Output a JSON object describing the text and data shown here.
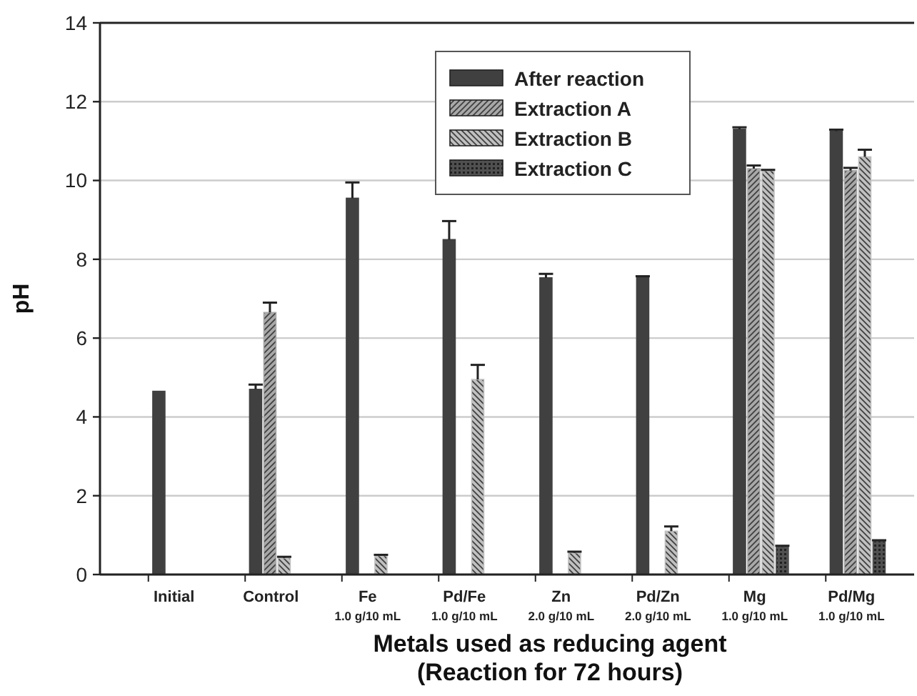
{
  "chart_data": {
    "type": "bar",
    "xlabel": "Metals used as reducing agent\n(Reaction for 72 hours)",
    "ylabel": "pH",
    "categories": [
      "Initial",
      "Control",
      "Fe\n1.0 g/10 mL",
      "Pd/Fe\n1.0 g/10 mL",
      "Zn\n2.0 g/10 mL",
      "Pd/Zn\n2.0 g/10 mL",
      "Mg\n1.0 g/10 mL",
      "Pd/Mg\n1.0 g/10 mL"
    ],
    "series": [
      {
        "name": "After reaction",
        "color": "#404040",
        "values": [
          4.65,
          4.7,
          9.55,
          8.5,
          7.53,
          7.55,
          11.3,
          11.25
        ],
        "errors": [
          null,
          [
            4.7,
            4.82
          ],
          [
            9.55,
            9.95
          ],
          [
            8.5,
            8.97
          ],
          [
            7.53,
            7.63
          ],
          [
            7.55,
            7.57
          ],
          [
            11.3,
            11.35
          ],
          [
            11.25,
            11.29
          ]
        ]
      },
      {
        "name": "Extraction A",
        "color": "#a8a8a8",
        "values": [
          null,
          6.65,
          null,
          null,
          null,
          null,
          10.3,
          10.25
        ],
        "errors": [
          null,
          [
            6.65,
            6.9
          ],
          null,
          null,
          null,
          null,
          [
            10.3,
            10.38
          ],
          [
            10.25,
            10.32
          ]
        ]
      },
      {
        "name": "Extraction B",
        "color": "#c0c0c0",
        "values": [
          null,
          0.42,
          0.48,
          4.95,
          0.55,
          1.1,
          10.25,
          10.6
        ],
        "errors": [
          null,
          [
            0.42,
            0.45
          ],
          [
            0.48,
            0.5
          ],
          [
            4.95,
            5.32
          ],
          [
            0.55,
            0.58
          ],
          [
            1.1,
            1.22
          ],
          [
            10.25,
            10.27
          ],
          [
            10.6,
            10.78
          ]
        ]
      },
      {
        "name": "Extraction C",
        "color": "#505050",
        "values": [
          null,
          null,
          null,
          null,
          null,
          null,
          0.7,
          0.85
        ],
        "errors": [
          null,
          null,
          null,
          null,
          null,
          null,
          [
            0.7,
            0.73
          ],
          [
            0.85,
            0.87
          ]
        ]
      }
    ],
    "ylim": [
      0,
      14
    ],
    "yticks": [
      0,
      2,
      4,
      6,
      8,
      10,
      12,
      14
    ],
    "grid": "y",
    "legend": "top right"
  }
}
